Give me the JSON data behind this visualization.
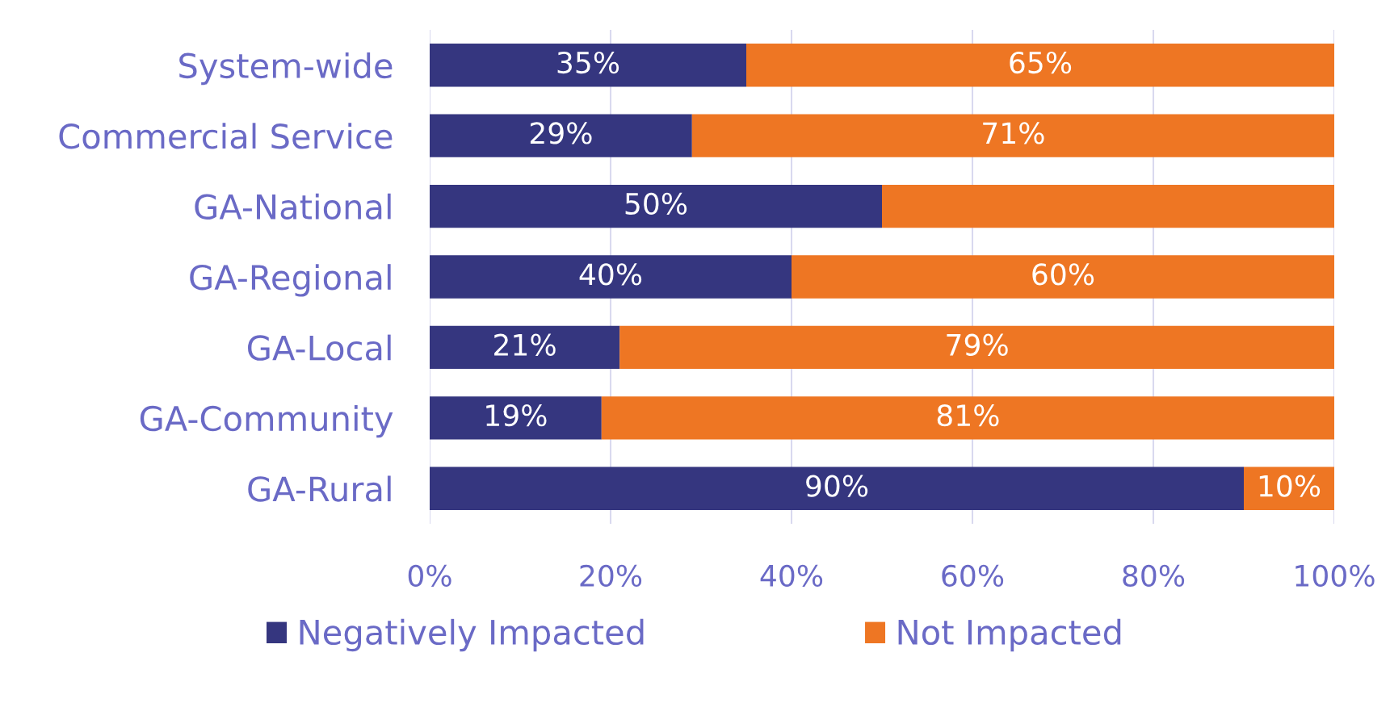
{
  "chart_data": {
    "type": "bar",
    "orientation": "horizontal",
    "stacked": true,
    "categories": [
      "System-wide",
      "Commercial Service",
      "GA-National",
      "GA-Regional",
      "GA-Local",
      "GA-Community",
      "GA-Rural"
    ],
    "series": [
      {
        "name": "Negatively Impacted",
        "color": "#35367f",
        "values": [
          35,
          29,
          50,
          40,
          21,
          19,
          90
        ],
        "value_labels": [
          "35%",
          "29%",
          "50%",
          "40%",
          "21%",
          "19%",
          "90%"
        ]
      },
      {
        "name": "Not Impacted",
        "color": "#ee7623",
        "values": [
          65,
          71,
          50,
          60,
          79,
          81,
          10
        ],
        "value_labels": [
          "65%",
          "71%",
          null,
          "60%",
          "79%",
          "81%",
          "10%"
        ]
      }
    ],
    "xlim": [
      0,
      100
    ],
    "xticks": [
      {
        "value": 0,
        "label": "0%"
      },
      {
        "value": 20,
        "label": "20%"
      },
      {
        "value": 40,
        "label": "40%"
      },
      {
        "value": 60,
        "label": "60%"
      },
      {
        "value": 80,
        "label": "80%"
      },
      {
        "value": 100,
        "label": "100%"
      }
    ],
    "grid": "x",
    "legend": "bottom"
  }
}
